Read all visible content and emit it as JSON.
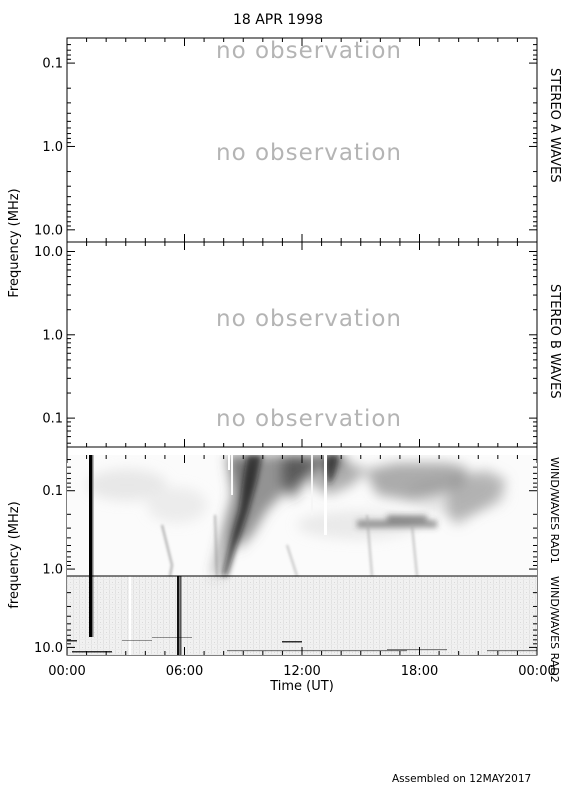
{
  "title": "18 APR 1998",
  "footer": "Assembled on 12MAY2017",
  "chart_data": [
    {
      "type": "heatmap",
      "panel": "STEREO A WAVES",
      "side_label": "STEREO A WAVES",
      "ylabel": "Frequency (MHz)",
      "y_scale": "log",
      "y_inverted": true,
      "ylim": [
        0.05,
        14
      ],
      "y_ticks": [
        {
          "value": 0.1,
          "label": "0.1"
        },
        {
          "value": 1.0,
          "label": "1.0"
        },
        {
          "value": 10.0,
          "label": "10.0"
        }
      ],
      "annotations": [
        "no observation",
        "no observation"
      ]
    },
    {
      "type": "heatmap",
      "panel": "STEREO B WAVES",
      "side_label": "STEREO B WAVES",
      "y_scale": "log",
      "y_inverted": false,
      "ylim": [
        0.045,
        13
      ],
      "y_ticks": [
        {
          "value": 10.0,
          "label": "10.0"
        },
        {
          "value": 1.0,
          "label": "1.0"
        },
        {
          "value": 0.1,
          "label": "0.1"
        }
      ],
      "annotations": [
        "no observation",
        "no observation"
      ]
    },
    {
      "type": "heatmap",
      "panel": "WIND/WAVES",
      "side_labels": [
        "WIND/WAVES RAD1",
        "WIND/WAVES RAD2"
      ],
      "ylabel": "frequency (MHz)",
      "xlabel": "Time (UT)",
      "x_ticks": [
        "00:00",
        "06:00",
        "12:00",
        "18:00",
        "00:00"
      ],
      "x_range_hours": [
        0,
        24
      ],
      "y_scale": "log",
      "y_inverted": true,
      "ylim": [
        0.035,
        12.5
      ],
      "y_ticks": [
        {
          "value": 0.1,
          "label": "0.1"
        },
        {
          "value": 1.0,
          "label": "1.0"
        },
        {
          "value": 10.0,
          "label": "10.0"
        }
      ],
      "features": [
        {
          "kind": "vertical_stripe",
          "time": "01:17",
          "freq_range": [
            0.035,
            12.5
          ]
        },
        {
          "kind": "type_III_burst",
          "time": "06:00",
          "freq_range": [
            0.1,
            12.5
          ]
        },
        {
          "kind": "type_III_burst",
          "time": "08:15",
          "freq_range": [
            0.04,
            1.0
          ]
        },
        {
          "kind": "type_II_like_drift",
          "time_range": [
            "08:45",
            "10:45"
          ],
          "freq_range": [
            0.04,
            0.12
          ]
        },
        {
          "kind": "type_II_like_drift",
          "time_range": [
            "12:00",
            "15:00"
          ],
          "freq_range": [
            0.04,
            0.1
          ]
        },
        {
          "kind": "type_II_like_drift",
          "time_range": [
            "17:30",
            "21:00"
          ],
          "freq_range": [
            0.06,
            0.2
          ]
        },
        {
          "kind": "data_gap",
          "time": "10:00"
        },
        {
          "kind": "data_gap",
          "time": "12:30"
        },
        {
          "kind": "data_gap",
          "time": "03:00"
        }
      ]
    }
  ]
}
